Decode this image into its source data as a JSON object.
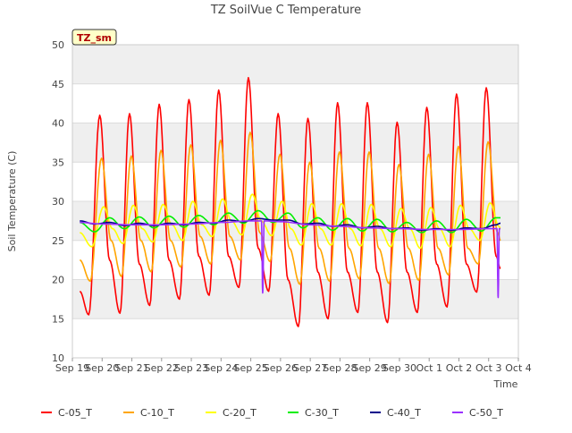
{
  "chart_data": {
    "type": "line",
    "title": "TZ SoilVue C Temperature",
    "xlabel": "Time",
    "ylabel": "Soil Temperature (C)",
    "ylim": [
      10,
      50
    ],
    "yticks": [
      10,
      15,
      20,
      25,
      30,
      35,
      40,
      45,
      50
    ],
    "xlim": [
      0,
      15
    ],
    "xticks": [
      0,
      1,
      2,
      3,
      4,
      5,
      6,
      7,
      8,
      9,
      10,
      11,
      12,
      13,
      14,
      15
    ],
    "xtick_labels": [
      "Sep 19",
      "Sep 20",
      "Sep 21",
      "Sep 22",
      "Sep 23",
      "Sep 24",
      "Sep 25",
      "Sep 26",
      "Sep 27",
      "Sep 28",
      "Sep 29",
      "Sep 30",
      "Oct 1",
      "Oct 2",
      "Oct 3",
      "Oct 4"
    ],
    "x_unit": "days since Sep 19 00:00",
    "grid": "horizontal bands",
    "legend_position": "bottom",
    "badge": "TZ_sm",
    "series": [
      {
        "name": "C-05_T",
        "color": "#ff0000",
        "x": [
          0.25,
          0.55,
          0.92,
          1.25,
          1.6,
          1.92,
          2.25,
          2.6,
          2.92,
          3.25,
          3.6,
          3.92,
          4.25,
          4.6,
          4.92,
          5.25,
          5.6,
          5.92,
          6.25,
          6.6,
          6.92,
          7.25,
          7.6,
          7.92,
          8.25,
          8.6,
          8.92,
          9.25,
          9.6,
          9.92,
          10.25,
          10.6,
          10.92,
          11.25,
          11.6,
          11.92,
          12.25,
          12.6,
          12.92,
          13.25,
          13.6,
          13.92,
          14.25,
          14.4
        ],
        "y": [
          18.5,
          15.5,
          41.0,
          22.5,
          15.7,
          41.2,
          22.0,
          16.7,
          42.4,
          22.5,
          17.5,
          43.0,
          23.0,
          18.0,
          44.2,
          23.0,
          19.0,
          45.8,
          24.0,
          18.5,
          41.2,
          20.0,
          14.0,
          40.6,
          21.0,
          15.0,
          42.6,
          21.0,
          15.8,
          42.6,
          21.0,
          14.5,
          40.1,
          21.0,
          15.8,
          42.0,
          22.0,
          16.5,
          43.7,
          22.0,
          18.4,
          44.5,
          23.0,
          21.4
        ]
      },
      {
        "name": "C-10_T",
        "color": "#ffa500",
        "x": [
          0.25,
          0.6,
          0.98,
          1.3,
          1.65,
          1.98,
          2.3,
          2.65,
          2.98,
          3.3,
          3.65,
          3.98,
          4.3,
          4.65,
          4.98,
          5.3,
          5.65,
          5.98,
          6.3,
          6.65,
          6.98,
          7.3,
          7.65,
          7.98,
          8.3,
          8.65,
          8.98,
          9.3,
          9.65,
          9.98,
          10.3,
          10.65,
          10.98,
          11.3,
          11.65,
          11.98,
          12.3,
          12.65,
          12.98,
          13.3,
          13.65,
          13.98,
          14.3,
          14.4
        ],
        "y": [
          22.5,
          19.8,
          35.5,
          25.0,
          20.4,
          35.8,
          25.0,
          21.0,
          36.5,
          25.0,
          21.6,
          37.2,
          25.5,
          22.0,
          37.8,
          25.5,
          22.5,
          38.8,
          26.0,
          22.3,
          36.0,
          24.0,
          19.4,
          35.0,
          24.0,
          19.8,
          36.3,
          24.0,
          20.1,
          36.3,
          24.0,
          19.5,
          34.7,
          24.0,
          19.9,
          36.0,
          24.0,
          20.6,
          37.0,
          24.0,
          22.0,
          37.6,
          26.0,
          25.0
        ]
      },
      {
        "name": "C-20_T",
        "color": "#ffff00",
        "x": [
          0.25,
          0.65,
          1.05,
          1.35,
          1.7,
          2.05,
          2.35,
          2.7,
          3.05,
          3.35,
          3.7,
          4.05,
          4.35,
          4.7,
          5.05,
          5.35,
          5.7,
          6.05,
          6.35,
          6.7,
          7.05,
          7.35,
          7.7,
          8.05,
          8.35,
          8.7,
          9.05,
          9.35,
          9.7,
          10.05,
          10.35,
          10.7,
          11.05,
          11.35,
          11.7,
          12.05,
          12.35,
          12.7,
          13.05,
          13.35,
          13.7,
          14.05,
          14.35,
          14.4
        ],
        "y": [
          26.0,
          24.2,
          29.3,
          26.5,
          24.6,
          29.5,
          26.5,
          24.8,
          29.6,
          27.0,
          25.0,
          30.0,
          27.0,
          25.5,
          30.3,
          27.5,
          25.7,
          30.9,
          27.5,
          25.6,
          30.0,
          26.5,
          24.4,
          29.7,
          26.5,
          24.4,
          29.7,
          26.5,
          24.3,
          29.6,
          26.5,
          24.2,
          29.1,
          26.5,
          24.0,
          29.2,
          26.5,
          24.2,
          29.5,
          26.5,
          25.0,
          29.8,
          26.8,
          26.5
        ]
      },
      {
        "name": "C-30_T",
        "color": "#00ee00",
        "x": [
          0.25,
          0.75,
          1.25,
          1.75,
          2.25,
          2.75,
          3.25,
          3.75,
          4.25,
          4.75,
          5.25,
          5.75,
          6.25,
          6.75,
          7.25,
          7.75,
          8.25,
          8.75,
          9.25,
          9.75,
          10.25,
          10.75,
          11.25,
          11.75,
          12.25,
          12.75,
          13.25,
          13.75,
          14.25,
          14.4
        ],
        "y": [
          27.3,
          26.1,
          27.9,
          26.5,
          28.0,
          26.6,
          28.1,
          26.7,
          28.2,
          27.0,
          28.5,
          27.2,
          28.8,
          27.3,
          28.5,
          26.6,
          27.9,
          26.3,
          27.8,
          26.2,
          27.7,
          26.1,
          27.3,
          26.0,
          27.5,
          26.0,
          27.7,
          26.2,
          27.9,
          27.9
        ]
      },
      {
        "name": "C-40_T",
        "color": "#00008b",
        "x": [
          0.25,
          0.75,
          1.25,
          1.75,
          2.25,
          2.75,
          3.25,
          3.75,
          4.25,
          4.75,
          5.25,
          5.75,
          6.25,
          6.75,
          7.25,
          7.75,
          8.25,
          8.75,
          9.25,
          9.75,
          10.25,
          10.75,
          11.25,
          11.75,
          12.25,
          12.75,
          13.25,
          13.75,
          14.25,
          14.4
        ],
        "y": [
          27.5,
          27.1,
          27.3,
          26.9,
          27.2,
          26.9,
          27.2,
          27.0,
          27.3,
          27.2,
          27.6,
          27.4,
          27.8,
          27.6,
          27.6,
          27.1,
          27.2,
          26.8,
          27.0,
          26.6,
          26.8,
          26.5,
          26.6,
          26.3,
          26.5,
          26.3,
          26.6,
          26.5,
          27.0,
          27.2
        ]
      },
      {
        "name": "C-50_T",
        "color": "#9b30ff",
        "x": [
          0.25,
          1.0,
          2.0,
          3.0,
          4.0,
          5.0,
          6.0,
          6.36,
          6.4,
          6.45,
          7.0,
          8.0,
          9.0,
          10.0,
          11.0,
          12.0,
          13.0,
          14.0,
          14.28,
          14.32,
          14.36,
          14.4
        ],
        "y": [
          27.3,
          27.1,
          27.0,
          27.0,
          27.1,
          27.3,
          27.5,
          27.5,
          18.3,
          27.5,
          27.4,
          27.0,
          26.8,
          26.6,
          26.5,
          26.4,
          26.4,
          26.5,
          26.5,
          17.7,
          26.5,
          26.5
        ]
      }
    ]
  }
}
